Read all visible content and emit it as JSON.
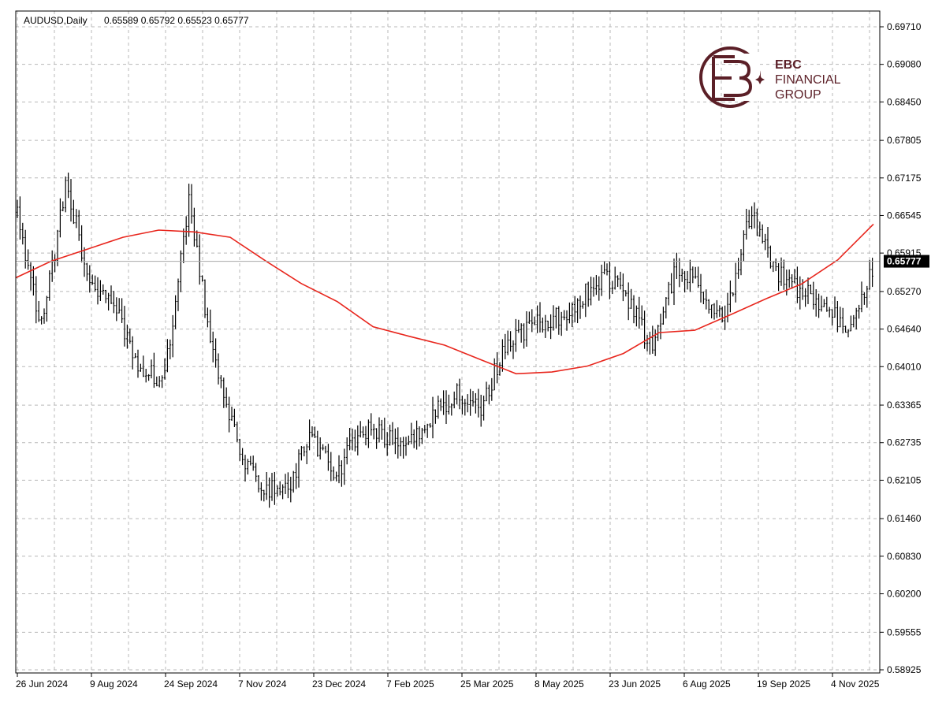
{
  "header": {
    "symbol_label": "AUDUSD,Daily",
    "ohlc_label": "0.65589 0.65792 0.65523 0.65777"
  },
  "logo": {
    "line1": "EBC",
    "line2": "FINANCIAL",
    "line3": "GROUP",
    "color": "#5b1f27"
  },
  "chart_data": {
    "type": "line",
    "title": "AUDUSD,Daily",
    "subtitle": "0.65589 0.65792 0.65523 0.65777",
    "bar_style": "OHLC bars",
    "grid": true,
    "ylim": [
      0.58925,
      0.6971
    ],
    "y_ticks": [
      "0.69710",
      "0.69080",
      "0.68450",
      "0.67805",
      "0.67175",
      "0.66545",
      "0.65915",
      "0.65270",
      "0.64640",
      "0.64010",
      "0.63365",
      "0.62735",
      "0.62105",
      "0.61460",
      "0.60830",
      "0.60200",
      "0.59555",
      "0.58925"
    ],
    "x_ticks": [
      "26 Jun 2024",
      "9 Aug 2024",
      "24 Sep 2024",
      "7 Nov 2024",
      "23 Dec 2024",
      "7 Feb 2025",
      "25 Mar 2025",
      "8 May 2025",
      "23 Jun 2025",
      "6 Aug 2025",
      "19 Sep 2025",
      "4 Nov 2025"
    ],
    "current_price": "0.65777",
    "colors": {
      "bars": "#000000",
      "moving_average": "#e8261d",
      "grid": "#b8b8b8",
      "price_line": "#a8a8a8",
      "price_tag_bg": "#000000"
    },
    "series": [
      {
        "kind": "price",
        "x": [
          "26 Jun 2024",
          "9 Aug 2024",
          "24 Sep 2024",
          "7 Nov 2024",
          "23 Dec 2024",
          "7 Feb 2025",
          "25 Mar 2025",
          "8 May 2025",
          "23 Jun 2025",
          "6 Aug 2025",
          "19 Sep 2025",
          "4 Nov 2025"
        ],
        "anchors": [
          0.666,
          0.6465,
          0.6705,
          0.654,
          0.6495,
          0.6405,
          0.637,
          0.668,
          0.642,
          0.627,
          0.62,
          0.619,
          0.6285,
          0.6215,
          0.6295,
          0.6285,
          0.6265,
          0.632,
          0.636,
          0.633,
          0.644,
          0.647,
          0.648,
          0.6515,
          0.6555,
          0.6515,
          0.6425,
          0.6575,
          0.6525,
          0.649,
          0.666,
          0.656,
          0.653,
          0.6505,
          0.646,
          0.6565
        ]
      },
      {
        "name": "",
        "kind": "moving_average",
        "values": [
          0.655,
          0.6578,
          0.6598,
          0.6618,
          0.663,
          0.6627,
          0.6618,
          0.6578,
          0.654,
          0.651,
          0.6468,
          0.6452,
          0.6437,
          0.6413,
          0.6389,
          0.6392,
          0.6402,
          0.6423,
          0.6458,
          0.6462,
          0.6488,
          0.6515,
          0.654,
          0.658,
          0.664
        ]
      }
    ]
  }
}
